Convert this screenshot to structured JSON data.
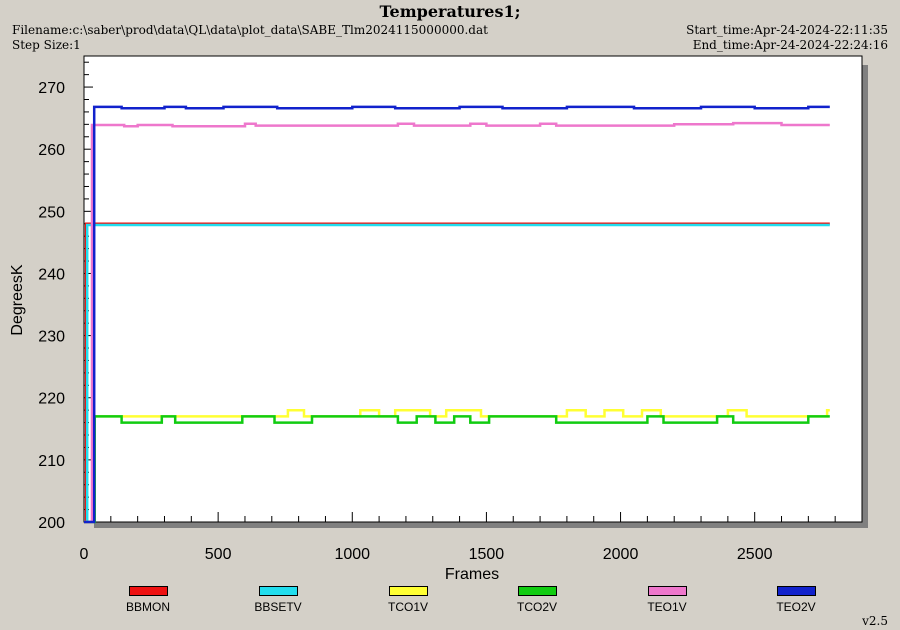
{
  "header": {
    "title": "Temperatures1;",
    "filename": "Filename:c:\\saber\\prod\\data\\QL\\data\\plot_data\\SABE_Tlm2024115000000.dat",
    "step_size": "Step Size:1",
    "start_time": "Start_time:Apr-24-2024-22:11:35",
    "end_time": "End_time:Apr-24-2024-22:24:16"
  },
  "version": "v2.5",
  "colors": {
    "BBMON": "#ee1111",
    "BBSETV": "#22ddee",
    "TCO1V": "#ffff33",
    "TCO2V": "#11cc11",
    "TEO1V": "#ee77cc",
    "TEO2V": "#1122cc"
  },
  "chart_data": {
    "type": "line",
    "title": "Temperatures1;",
    "xlabel": "Frames",
    "ylabel": "DegreesK",
    "xlim": [
      0,
      2900
    ],
    "ylim": [
      200,
      275
    ],
    "xticks": [
      0,
      500,
      1000,
      1500,
      2000,
      2500
    ],
    "yticks": [
      200,
      210,
      220,
      230,
      240,
      250,
      260,
      270
    ],
    "grid": false,
    "legend_position": "bottom",
    "series": [
      {
        "name": "BBMON",
        "color": "#ee1111",
        "x": [
          0,
          8,
          8,
          2780
        ],
        "y": [
          200,
          200,
          248,
          248
        ]
      },
      {
        "name": "BBSETV",
        "color": "#22ddee",
        "x": [
          0,
          12,
          12,
          2780
        ],
        "y": [
          200,
          200,
          247.8,
          247.8
        ]
      },
      {
        "name": "TCO1V",
        "color": "#ffff33",
        "x": [
          0,
          38,
          38,
          760,
          760,
          820,
          820,
          1030,
          1030,
          1100,
          1100,
          1160,
          1160,
          1290,
          1290,
          1350,
          1350,
          1480,
          1480,
          1800,
          1800,
          1870,
          1870,
          1940,
          1940,
          2010,
          2010,
          2080,
          2080,
          2150,
          2150,
          2400,
          2400,
          2470,
          2470,
          2770,
          2770,
          2780
        ],
        "y": [
          200,
          200,
          217,
          217,
          218,
          218,
          217,
          217,
          218,
          218,
          217,
          217,
          218,
          218,
          217,
          217,
          218,
          218,
          217,
          217,
          218,
          218,
          217,
          217,
          218,
          218,
          217,
          217,
          218,
          218,
          217,
          217,
          218,
          218,
          217,
          217,
          218,
          218
        ]
      },
      {
        "name": "TCO2V",
        "color": "#11cc11",
        "x": [
          0,
          40,
          40,
          140,
          140,
          290,
          290,
          340,
          340,
          590,
          590,
          710,
          710,
          850,
          850,
          1170,
          1170,
          1240,
          1240,
          1310,
          1310,
          1380,
          1380,
          1440,
          1440,
          1510,
          1510,
          1760,
          1760,
          2100,
          2100,
          2160,
          2160,
          2360,
          2360,
          2420,
          2420,
          2700,
          2700,
          2780
        ],
        "y": [
          200,
          200,
          217,
          217,
          216,
          216,
          217,
          217,
          216,
          216,
          217,
          217,
          216,
          216,
          217,
          217,
          216,
          216,
          217,
          217,
          216,
          216,
          217,
          217,
          216,
          216,
          217,
          217,
          216,
          216,
          217,
          217,
          216,
          216,
          217,
          217,
          216,
          216,
          217,
          217
        ]
      },
      {
        "name": "TEO1V",
        "color": "#ee77cc",
        "x": [
          0,
          30,
          30,
          150,
          150,
          200,
          200,
          330,
          330,
          600,
          600,
          640,
          640,
          1170,
          1170,
          1230,
          1230,
          1440,
          1440,
          1500,
          1500,
          1700,
          1700,
          1760,
          1760,
          2200,
          2200,
          2420,
          2420,
          2600,
          2600,
          2780
        ],
        "y": [
          200,
          200,
          263.9,
          263.9,
          263.7,
          263.7,
          263.9,
          263.9,
          263.7,
          263.7,
          264.1,
          264.1,
          263.8,
          263.8,
          264.1,
          264.1,
          263.8,
          263.8,
          264.1,
          264.1,
          263.8,
          263.8,
          264.1,
          264.1,
          263.8,
          263.8,
          264.0,
          264.0,
          264.2,
          264.2,
          263.9,
          263.9
        ]
      },
      {
        "name": "TEO2V",
        "color": "#1122cc",
        "x": [
          0,
          38,
          38,
          140,
          140,
          300,
          300,
          380,
          380,
          520,
          520,
          720,
          720,
          1000,
          1000,
          1160,
          1160,
          1400,
          1400,
          1560,
          1560,
          1800,
          1800,
          2050,
          2050,
          2300,
          2300,
          2500,
          2500,
          2700,
          2700,
          2780
        ],
        "y": [
          200,
          200,
          266.8,
          266.8,
          266.6,
          266.6,
          266.8,
          266.8,
          266.6,
          266.6,
          266.8,
          266.8,
          266.6,
          266.6,
          266.8,
          266.8,
          266.6,
          266.6,
          266.8,
          266.8,
          266.6,
          266.6,
          266.8,
          266.8,
          266.6,
          266.6,
          266.8,
          266.8,
          266.6,
          266.6,
          266.8,
          266.8
        ]
      }
    ]
  }
}
